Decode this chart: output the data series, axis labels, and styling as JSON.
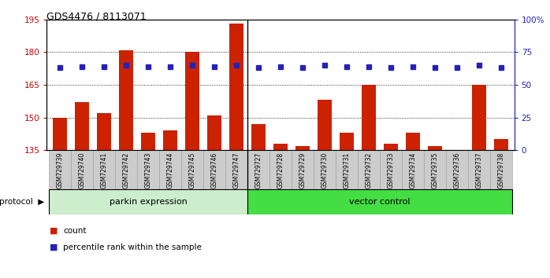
{
  "title": "GDS4476 / 8113071",
  "samples": [
    "GSM729739",
    "GSM729740",
    "GSM729741",
    "GSM729742",
    "GSM729743",
    "GSM729744",
    "GSM729745",
    "GSM729746",
    "GSM729747",
    "GSM729727",
    "GSM729728",
    "GSM729729",
    "GSM729730",
    "GSM729731",
    "GSM729732",
    "GSM729733",
    "GSM729734",
    "GSM729735",
    "GSM729736",
    "GSM729737",
    "GSM729738"
  ],
  "bar_values": [
    150,
    157,
    152,
    181,
    143,
    144,
    180,
    151,
    193,
    147,
    138,
    137,
    158,
    143,
    165,
    138,
    143,
    137,
    135,
    165,
    140
  ],
  "percentile_values": [
    63,
    64,
    64,
    65,
    64,
    64,
    65,
    64,
    65,
    63,
    64,
    63,
    65,
    64,
    64,
    63,
    64,
    63,
    63,
    65,
    63
  ],
  "group1_label": "parkin expression",
  "group1_count": 9,
  "group2_label": "vector control",
  "group2_count": 12,
  "protocol_label": "protocol",
  "y_min": 135,
  "y_max": 195,
  "y_ticks_all": [
    135,
    150,
    165,
    180,
    195
  ],
  "y_ticks_dotted": [
    150,
    165,
    180
  ],
  "y2_ticks": [
    0,
    25,
    50,
    75,
    100
  ],
  "y2_tick_labels": [
    "0",
    "25",
    "50",
    "75",
    "100%"
  ],
  "bar_color": "#cc2200",
  "dot_color": "#2222bb",
  "group1_bg": "#cceecc",
  "group2_bg": "#44dd44",
  "tickbox_bg": "#cccccc",
  "tickbox_edge": "#999999",
  "axis_label_color": "#cc0000",
  "right_axis_color": "#2222bb",
  "separator_color": "#000000"
}
